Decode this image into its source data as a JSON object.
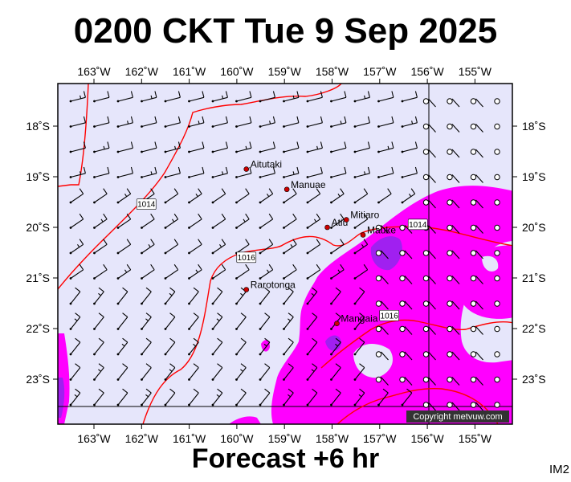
{
  "title": "0200 CKT Tue 9 Sep 2025",
  "subtitle": "Forecast +6 hr",
  "image_code": "IM2",
  "copyright": "Copyright metvuw.com",
  "colors": {
    "ocean": "#e6e6fb",
    "precip_light": "#ff00ff",
    "precip_heavy": "#a020f0",
    "isobar": "#ff0000",
    "frame": "#000000",
    "place_marker": "#cc0000"
  },
  "axes": {
    "lon_labels": [
      "163˚W",
      "162˚W",
      "161˚W",
      "160˚W",
      "159˚W",
      "158˚W",
      "157˚W",
      "156˚W",
      "155˚W"
    ],
    "lat_labels": [
      "18˚S",
      "19˚S",
      "20˚S",
      "21˚S",
      "22˚S",
      "23˚S"
    ]
  },
  "places": [
    {
      "name": "Aitutaki",
      "lon": -159.8,
      "lat": -18.85
    },
    {
      "name": "Manuae",
      "lon": -158.95,
      "lat": -19.25
    },
    {
      "name": "Atiu",
      "lon": -158.1,
      "lat": -20.0
    },
    {
      "name": "Mitiaro",
      "lon": -157.7,
      "lat": -19.85
    },
    {
      "name": "Mauke",
      "lon": -157.35,
      "lat": -20.15
    },
    {
      "name": "Rarotonga",
      "lon": -159.8,
      "lat": -21.23
    },
    {
      "name": "Mangaia",
      "lon": -157.9,
      "lat": -21.9
    }
  ],
  "isobar_labels": [
    {
      "text": "1014",
      "lon": -161.9,
      "lat": -19.55
    },
    {
      "text": "1016",
      "lon": -159.8,
      "lat": -20.6
    },
    {
      "text": "1016",
      "lon": -156.8,
      "lat": -21.75
    },
    {
      "text": "1014",
      "lon": -156.2,
      "lat": -19.95
    }
  ],
  "wind_field": "10-15 kt southeasterly trade winds over most of the domain; calm (circle) points along the eastern edge"
}
